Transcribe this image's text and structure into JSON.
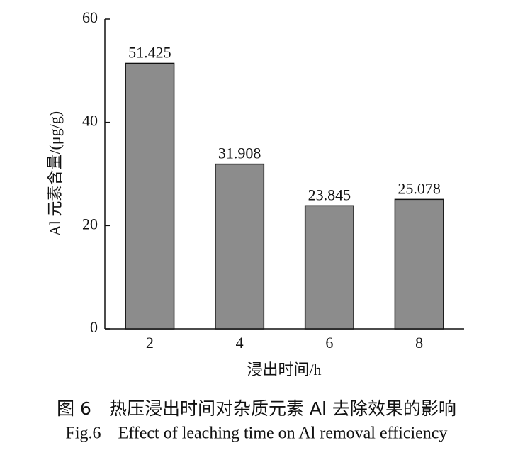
{
  "chart_data": {
    "type": "bar",
    "categories": [
      "2",
      "4",
      "6",
      "8"
    ],
    "values": [
      51.425,
      31.908,
      23.845,
      25.078
    ],
    "color": "#8c8c8c",
    "ylim": [
      0,
      60
    ],
    "yticks": [
      0,
      20,
      40,
      60
    ],
    "y_label": "Al 元素含量/(μg/g)",
    "x_label": "浸出时间/h",
    "value_labels_shown": true
  },
  "caption": {
    "zh": "图 6　热压浸出时间对杂质元素 Al 去除效果的影响",
    "en": "Fig.6　Effect of leaching time on Al removal efficiency"
  }
}
